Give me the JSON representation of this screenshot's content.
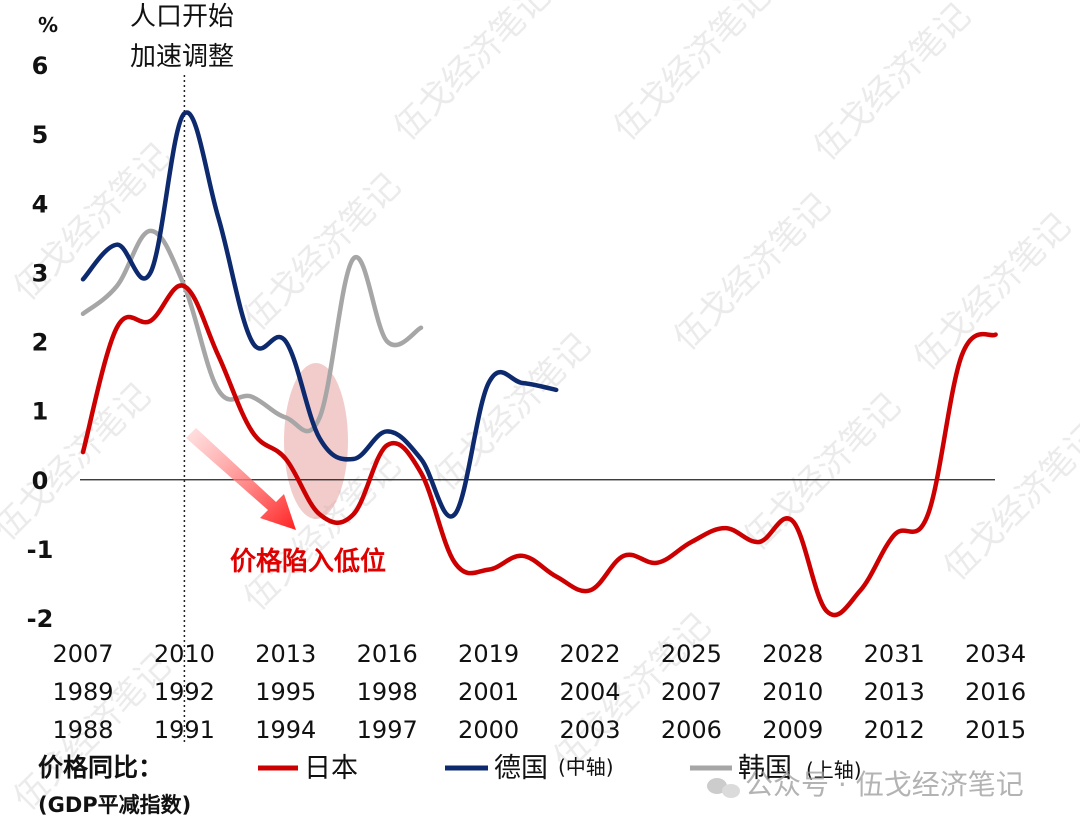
{
  "chart_data": {
    "type": "line",
    "unit_label": "%",
    "ylim": [
      -2,
      6
    ],
    "yticks": [
      "-2",
      "-1",
      "0",
      "1",
      "2",
      "3",
      "4",
      "5",
      "6"
    ],
    "x_axes": [
      {
        "name": "axis-top",
        "labels": [
          "2007",
          "2010",
          "2013",
          "2016",
          "2019",
          "2022",
          "2025",
          "2028",
          "2031",
          "2034"
        ]
      },
      {
        "name": "axis-middle",
        "labels": [
          "1989",
          "1992",
          "1995",
          "1998",
          "2001",
          "2004",
          "2007",
          "2010",
          "2013",
          "2016"
        ]
      },
      {
        "name": "axis-bottom",
        "labels": [
          "1988",
          "1991",
          "1994",
          "1997",
          "2000",
          "2003",
          "2006",
          "2009",
          "2012",
          "2015"
        ]
      }
    ],
    "series": [
      {
        "name": "日本",
        "axis": "axis-bottom",
        "color": "#cc0000",
        "x": [
          1988,
          1989,
          1990,
          1991,
          1992,
          1993,
          1994,
          1995,
          1996,
          1997,
          1998,
          1999,
          2000,
          2001,
          2002,
          2003,
          2004,
          2005,
          2006,
          2007,
          2008,
          2009,
          2010,
          2011,
          2012,
          2013,
          2014,
          2015
        ],
        "values": [
          0.4,
          2.2,
          2.3,
          2.8,
          1.8,
          0.7,
          0.3,
          -0.5,
          -0.5,
          0.5,
          0.1,
          -1.2,
          -1.3,
          -1.1,
          -1.4,
          -1.6,
          -1.1,
          -1.2,
          -0.9,
          -0.7,
          -0.9,
          -0.6,
          -1.9,
          -1.6,
          -0.8,
          -0.5,
          1.8,
          2.1
        ]
      },
      {
        "name": "德国",
        "axis": "axis-middle",
        "color": "#0d2a6e",
        "x": [
          1989,
          1990,
          1991,
          1992,
          1993,
          1994,
          1995,
          1996,
          1997,
          1998,
          1999,
          2000,
          2001,
          2002,
          2003
        ],
        "values": [
          2.9,
          3.4,
          3.0,
          5.3,
          3.8,
          2.0,
          2.0,
          0.6,
          0.3,
          0.7,
          0.3,
          -0.5,
          1.4,
          1.4,
          1.3
        ]
      },
      {
        "name": "韩国",
        "axis": "axis-top",
        "color": "#a6a6a6",
        "x": [
          2007,
          2008,
          2009,
          2010,
          2011,
          2012,
          2013,
          2014,
          2015,
          2016,
          2017
        ],
        "values": [
          2.4,
          2.8,
          3.6,
          2.8,
          1.3,
          1.2,
          0.9,
          0.9,
          3.2,
          2.0,
          2.2
        ]
      }
    ],
    "grid": false
  },
  "annotations": {
    "population_line1": "人口开始",
    "population_line2": "加速调整",
    "price_trap": "价格陷入低位"
  },
  "legend": {
    "title": "价格同比：",
    "subtitle": "(GDP平减指数)",
    "japan": "日本",
    "germany": "德国",
    "germany_axis": "(中轴)",
    "korea": "韩国",
    "korea_axis": "(上轴)"
  },
  "watermark": {
    "text": "伍戈经济笔记",
    "footer": "公众号 · 伍戈经济笔记",
    "footer_icon": "wechat-icon"
  }
}
